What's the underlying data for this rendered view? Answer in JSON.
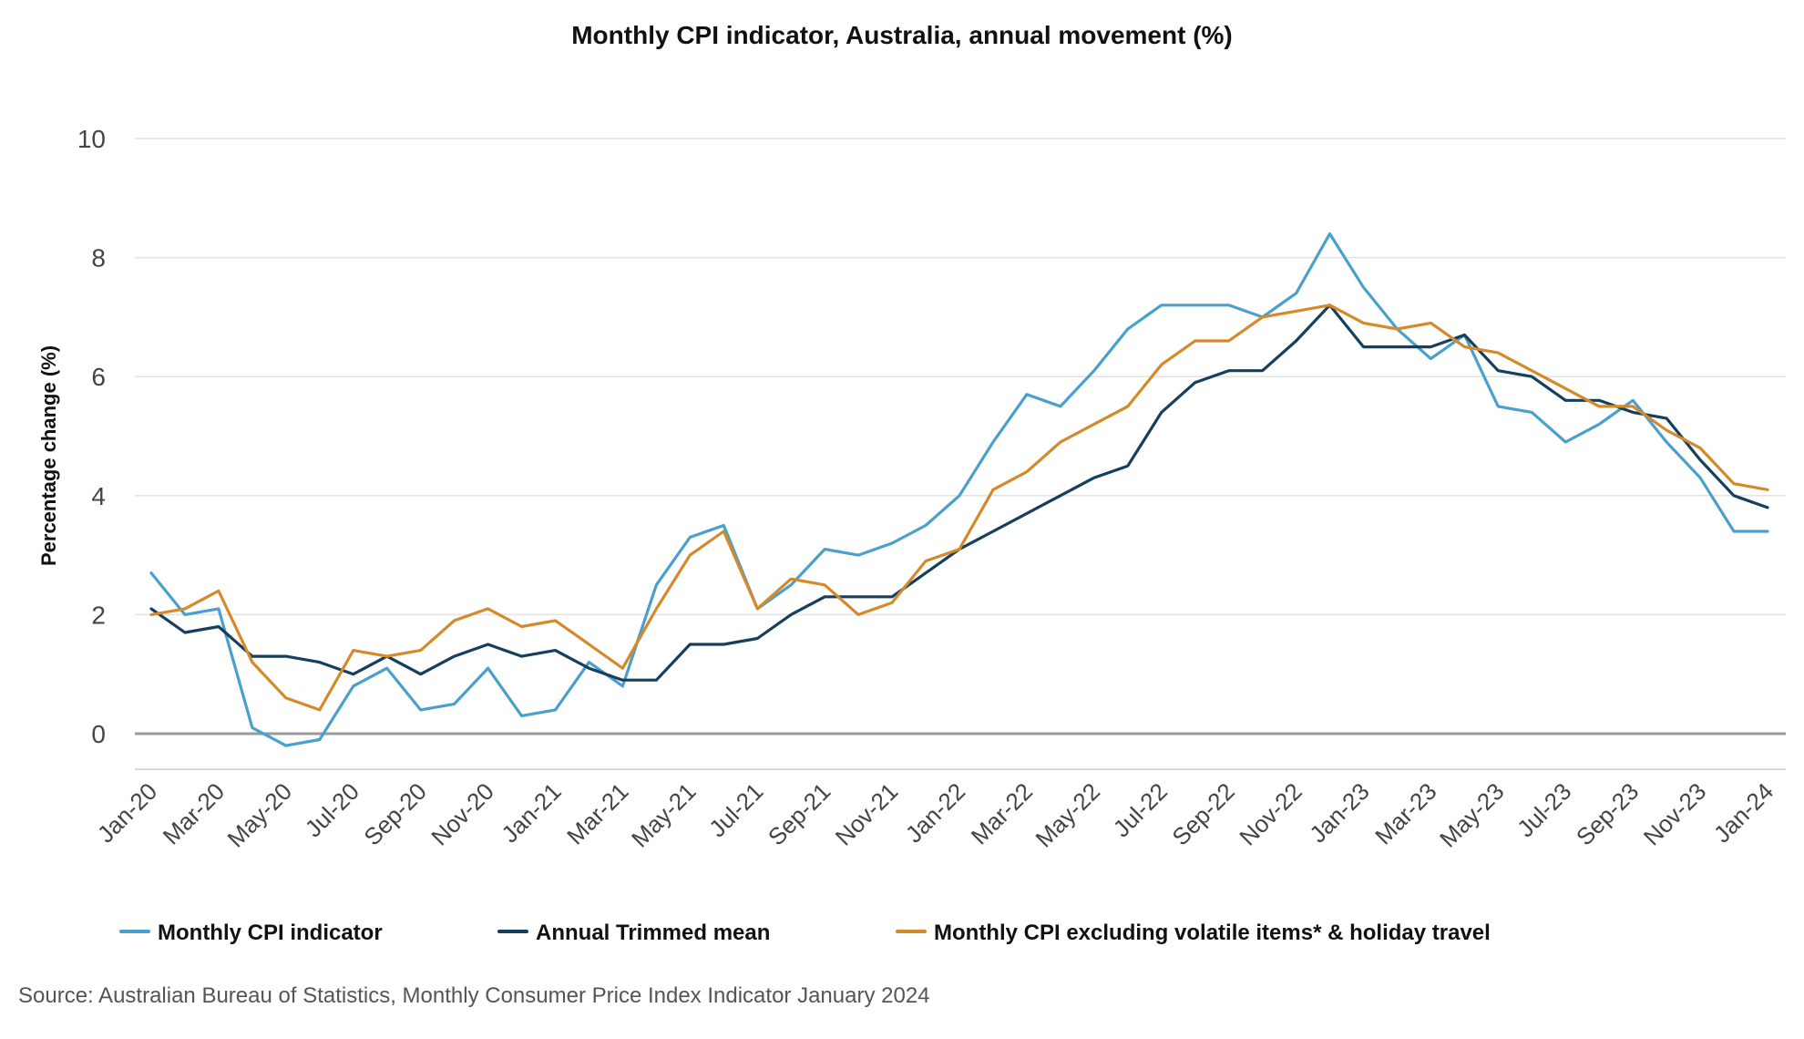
{
  "chart_data": {
    "type": "line",
    "title": "Monthly CPI indicator, Australia, annual movement (%)",
    "xlabel": "",
    "ylabel": "Percentage change (%)",
    "ylim": [
      -0.6,
      10
    ],
    "yticks": [
      0,
      2,
      4,
      6,
      8,
      10
    ],
    "grid": true,
    "legend_position": "bottom",
    "source": "Source: Australian Bureau of Statistics, Monthly Consumer Price Index Indicator January 2024",
    "x": [
      "Jan-20",
      "Feb-20",
      "Mar-20",
      "Apr-20",
      "May-20",
      "Jun-20",
      "Jul-20",
      "Aug-20",
      "Sep-20",
      "Oct-20",
      "Nov-20",
      "Dec-20",
      "Jan-21",
      "Feb-21",
      "Mar-21",
      "Apr-21",
      "May-21",
      "Jun-21",
      "Jul-21",
      "Aug-21",
      "Sep-21",
      "Oct-21",
      "Nov-21",
      "Dec-21",
      "Jan-22",
      "Feb-22",
      "Mar-22",
      "Apr-22",
      "May-22",
      "Jun-22",
      "Jul-22",
      "Aug-22",
      "Sep-22",
      "Oct-22",
      "Nov-22",
      "Dec-22",
      "Jan-23",
      "Feb-23",
      "Mar-23",
      "Apr-23",
      "May-23",
      "Jun-23",
      "Jul-23",
      "Aug-23",
      "Sep-23",
      "Oct-23",
      "Nov-23",
      "Dec-23",
      "Jan-24"
    ],
    "x_tick_labels": [
      "Jan-20",
      "Mar-20",
      "May-20",
      "Jul-20",
      "Sep-20",
      "Nov-20",
      "Jan-21",
      "Mar-21",
      "May-21",
      "Jul-21",
      "Sep-21",
      "Nov-21",
      "Jan-22",
      "Mar-22",
      "May-22",
      "Jul-22",
      "Sep-22",
      "Nov-22",
      "Jan-23",
      "Mar-23",
      "May-23",
      "Jul-23",
      "Sep-23",
      "Nov-23",
      "Jan-24"
    ],
    "series": [
      {
        "name": "Monthly CPI indicator",
        "color": "#4aa0cc",
        "values": [
          2.7,
          2.0,
          2.1,
          0.1,
          -0.2,
          -0.1,
          0.8,
          1.1,
          0.4,
          0.5,
          1.1,
          0.3,
          0.4,
          1.2,
          0.8,
          2.5,
          3.3,
          3.5,
          2.1,
          2.5,
          3.1,
          3.0,
          3.2,
          3.5,
          4.0,
          4.9,
          5.7,
          5.5,
          6.1,
          6.8,
          7.2,
          7.2,
          7.2,
          7.0,
          7.4,
          8.4,
          7.5,
          6.8,
          6.3,
          6.7,
          5.5,
          5.4,
          4.9,
          5.2,
          5.6,
          4.9,
          4.3,
          3.4,
          3.4
        ]
      },
      {
        "name": "Annual Trimmed mean",
        "color": "#163f5e",
        "values": [
          2.1,
          1.7,
          1.8,
          1.3,
          1.3,
          1.2,
          1.0,
          1.3,
          1.0,
          1.3,
          1.5,
          1.3,
          1.4,
          1.1,
          0.9,
          0.9,
          1.5,
          1.5,
          1.6,
          2.0,
          2.3,
          2.3,
          2.3,
          2.7,
          3.1,
          3.4,
          3.7,
          4.0,
          4.3,
          4.5,
          5.4,
          5.9,
          6.1,
          6.1,
          6.6,
          7.2,
          6.5,
          6.5,
          6.5,
          6.7,
          6.1,
          6.0,
          5.6,
          5.6,
          5.4,
          5.3,
          4.6,
          4.0,
          3.8
        ]
      },
      {
        "name": "Monthly CPI excluding volatile items* & holiday travel",
        "color": "#d48a2a",
        "values": [
          2.0,
          2.1,
          2.4,
          1.2,
          0.6,
          0.4,
          1.4,
          1.3,
          1.4,
          1.9,
          2.1,
          1.8,
          1.9,
          1.5,
          1.1,
          2.1,
          3.0,
          3.4,
          2.1,
          2.6,
          2.5,
          2.0,
          2.2,
          2.9,
          3.1,
          4.1,
          4.4,
          4.9,
          5.2,
          5.5,
          6.2,
          6.6,
          6.6,
          7.0,
          7.1,
          7.2,
          6.9,
          6.8,
          6.9,
          6.5,
          6.4,
          6.1,
          5.8,
          5.5,
          5.5,
          5.1,
          4.8,
          4.2,
          4.1
        ]
      }
    ]
  }
}
